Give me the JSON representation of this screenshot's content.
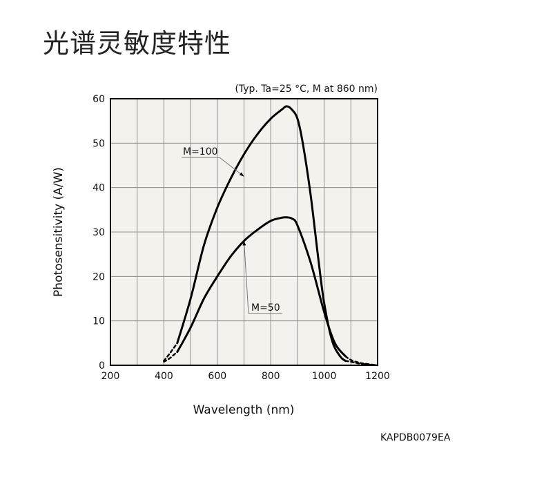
{
  "page": {
    "title": "光谱灵敏度特性",
    "code": "KAPDB0079EA"
  },
  "chart_data": {
    "type": "line",
    "condition": "(Typ. Ta=25 °C, M at 860 nm)",
    "xlabel": "Wavelength (nm)",
    "ylabel": "Photosensitivity (A/W)",
    "xlim": [
      200,
      1200
    ],
    "ylim": [
      0,
      60
    ],
    "xticks": [
      200,
      400,
      600,
      800,
      1000,
      1200
    ],
    "yticks": [
      0,
      10,
      20,
      30,
      40,
      50,
      60
    ],
    "grid": true,
    "series": [
      {
        "name": "M=100",
        "x": [
          400,
          420,
          450,
          500,
          550,
          600,
          650,
          700,
          750,
          800,
          840,
          860,
          880,
          900,
          920,
          950,
          980,
          1000,
          1030,
          1060,
          1080,
          1100,
          1130,
          1160,
          1180,
          1200
        ],
        "y": [
          1,
          2.5,
          5,
          15,
          27,
          35.5,
          42,
          47.5,
          52,
          55.5,
          57.5,
          58.3,
          57.5,
          55.5,
          50,
          38,
          23,
          14,
          5.5,
          2,
          1,
          0.8,
          0.4,
          0.2,
          0.1,
          0
        ]
      },
      {
        "name": "M=50",
        "x": [
          400,
          420,
          450,
          500,
          550,
          600,
          650,
          700,
          750,
          800,
          840,
          860,
          880,
          900,
          950,
          1000,
          1040,
          1080,
          1100,
          1130,
          1160,
          1200
        ],
        "y": [
          0.8,
          1.5,
          3,
          8.5,
          15,
          20,
          24.5,
          28,
          30.5,
          32.5,
          33.2,
          33.3,
          33,
          31.5,
          23,
          12,
          5,
          2,
          1.2,
          0.6,
          0.3,
          0
        ]
      }
    ]
  }
}
